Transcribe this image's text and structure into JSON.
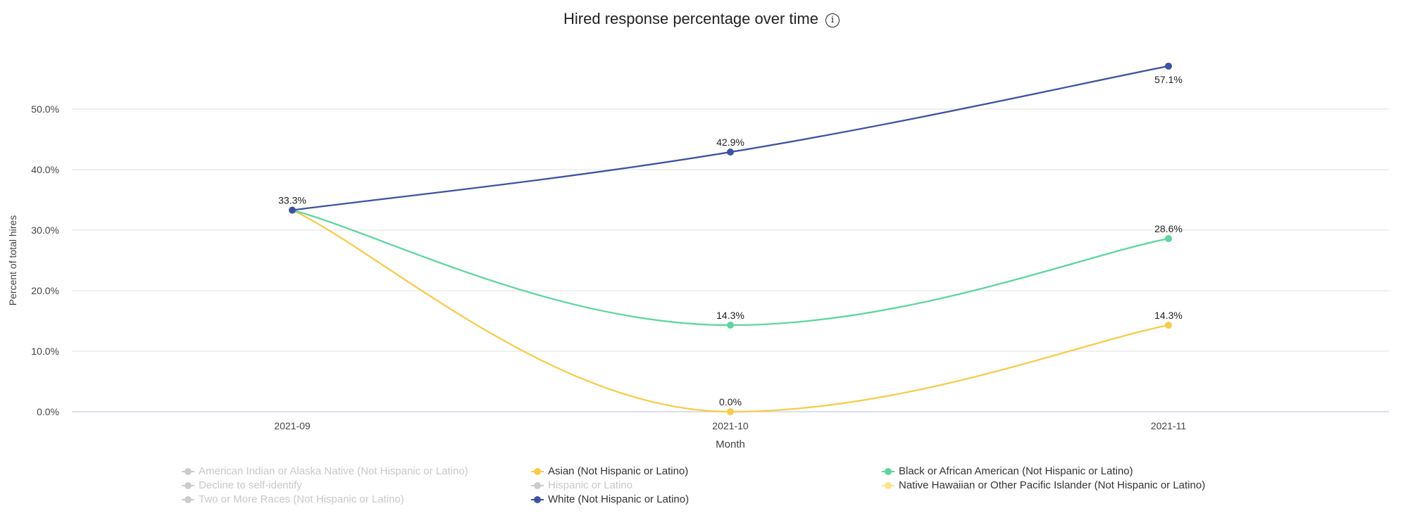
{
  "chart_data": {
    "type": "line",
    "title": "Hired response percentage over time",
    "title_icon": "info-icon",
    "xlabel": "Month",
    "ylabel": "Percent of total hires",
    "categories": [
      "2021-09",
      "2021-10",
      "2021-11"
    ],
    "yticks": [
      "0.0%",
      "10.0%",
      "20.0%",
      "30.0%",
      "40.0%",
      "50.0%"
    ],
    "ylim": [
      0,
      60
    ],
    "grid": true,
    "legend_position": "bottom",
    "series": [
      {
        "name": "White (Not Hispanic or Latino)",
        "color": "#3F51A3",
        "values": [
          33.3,
          42.9,
          57.1
        ],
        "labels": [
          "33.3%",
          "42.9%",
          "57.1%"
        ]
      },
      {
        "name": "Black or African American (Not Hispanic or Latino)",
        "color": "#5ED5A0",
        "values": [
          33.3,
          14.3,
          28.6
        ],
        "labels": [
          "",
          "14.3%",
          "28.6%"
        ]
      },
      {
        "name": "Asian (Not Hispanic or Latino)",
        "color": "#F8CB4A",
        "values": [
          33.3,
          0.0,
          14.3
        ],
        "labels": [
          "",
          "0.0%",
          "14.3%"
        ]
      }
    ],
    "legend": [
      {
        "label": "American Indian or Alaska Native (Not Hispanic or Latino)",
        "color": "#CCCCCC",
        "active": false
      },
      {
        "label": "Asian (Not Hispanic or Latino)",
        "color": "#F8CB4A",
        "active": true
      },
      {
        "label": "Black or African American (Not Hispanic or Latino)",
        "color": "#5ED5A0",
        "active": true
      },
      {
        "label": "Decline to self-identify",
        "color": "#CCCCCC",
        "active": false
      },
      {
        "label": "Hispanic or Latino",
        "color": "#CCCCCC",
        "active": false
      },
      {
        "label": "Native Hawaiian or Other Pacific Islander (Not Hispanic or Latino)",
        "color": "#FBE38C",
        "active": true
      },
      {
        "label": "Two or More Races (Not Hispanic or Latino)",
        "color": "#CCCCCC",
        "active": false
      },
      {
        "label": "White (Not Hispanic or Latino)",
        "color": "#3F51A3",
        "active": true
      }
    ]
  }
}
